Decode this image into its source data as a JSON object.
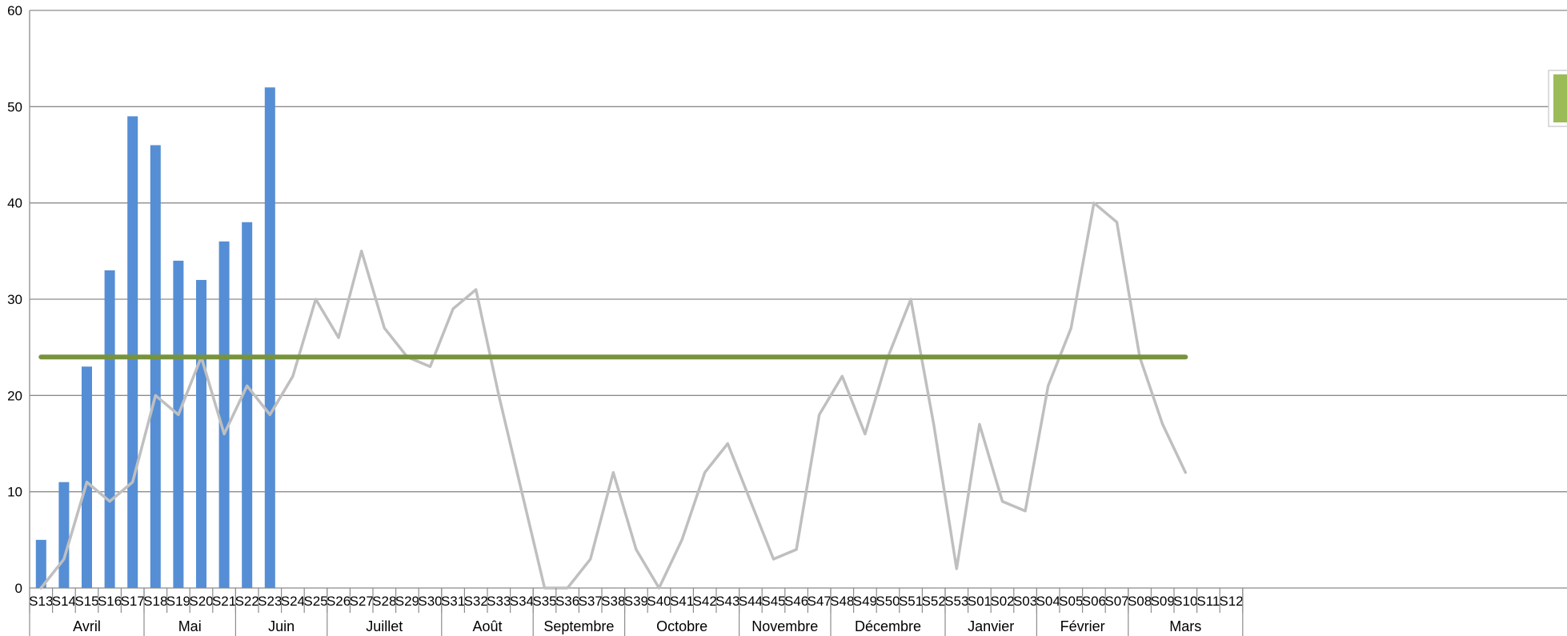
{
  "chart_data": {
    "type": "bar",
    "ylim": [
      0,
      60
    ],
    "yticks": [
      "0",
      "10",
      "20",
      "30",
      "40",
      "50",
      "60"
    ],
    "categories": [
      "S13",
      "S14",
      "S15",
      "S16",
      "S17",
      "S18",
      "S19",
      "S20",
      "S21",
      "S22",
      "S23",
      "S24",
      "S25",
      "S26",
      "S27",
      "S28",
      "S29",
      "S30",
      "S31",
      "S32",
      "S33",
      "S34",
      "S35",
      "S36",
      "S37",
      "S38",
      "S39",
      "S40",
      "S41",
      "S42",
      "S43",
      "S44",
      "S45",
      "S46",
      "S47",
      "S48",
      "S49",
      "S50",
      "S51",
      "S52",
      "S53",
      "S01",
      "S02",
      "S03",
      "S04",
      "S05",
      "S06",
      "S07",
      "S08",
      "S09",
      "S10",
      "S11",
      "S12"
    ],
    "months": [
      {
        "label": "Avril",
        "start": 0,
        "end": 4
      },
      {
        "label": "Mai",
        "start": 5,
        "end": 8
      },
      {
        "label": "Juin",
        "start": 9,
        "end": 12
      },
      {
        "label": "Juillet",
        "start": 13,
        "end": 17
      },
      {
        "label": "Août",
        "start": 18,
        "end": 21
      },
      {
        "label": "Septembre",
        "start": 22,
        "end": 25
      },
      {
        "label": "Octobre",
        "start": 26,
        "end": 30
      },
      {
        "label": "Novembre",
        "start": 31,
        "end": 34
      },
      {
        "label": "Décembre",
        "start": 35,
        "end": 39
      },
      {
        "label": "Janvier",
        "start": 40,
        "end": 43
      },
      {
        "label": "Février",
        "start": 44,
        "end": 47
      },
      {
        "label": "Mars",
        "start": 48,
        "end": 52
      }
    ],
    "series": [
      {
        "type": "bar",
        "color": "#558ed5",
        "values": [
          5,
          11,
          23,
          33,
          49,
          46,
          34,
          32,
          36,
          38,
          52,
          null,
          null,
          null,
          null,
          null,
          null,
          null,
          null,
          null,
          null,
          null,
          null,
          null,
          null,
          null,
          null,
          null,
          null,
          null,
          null,
          null,
          null,
          null,
          null,
          null,
          null,
          null,
          null,
          null,
          null,
          null,
          null,
          null,
          null,
          null,
          null,
          null,
          null,
          null,
          null,
          null,
          null
        ]
      },
      {
        "type": "line",
        "color": "#bfbfbf",
        "values": [
          0,
          3,
          11,
          9,
          11,
          20,
          18,
          24,
          16,
          21,
          18,
          22,
          30,
          26,
          35,
          27,
          24,
          23,
          29,
          31,
          20,
          10,
          0,
          0,
          3,
          12,
          4,
          0,
          5,
          12,
          15,
          9,
          3,
          4,
          18,
          22,
          16,
          24,
          30,
          17,
          2,
          17,
          9,
          8,
          21,
          27,
          40,
          38,
          24,
          17,
          12,
          null,
          null
        ]
      },
      {
        "type": "line",
        "color": "#77933c",
        "values": [
          24,
          24,
          24,
          24,
          24,
          24,
          24,
          24,
          24,
          24,
          24,
          24,
          24,
          24,
          24,
          24,
          24,
          24,
          24,
          24,
          24,
          24,
          24,
          24,
          24,
          24,
          24,
          24,
          24,
          24,
          24,
          24,
          24,
          24,
          24,
          24,
          24,
          24,
          24,
          24,
          24,
          24,
          24,
          24,
          24,
          24,
          24,
          24,
          24,
          24,
          24,
          null,
          null
        ]
      }
    ],
    "grid": true,
    "legend": "right (partially visible green marker)",
    "legend_color": "#9bbb59"
  }
}
